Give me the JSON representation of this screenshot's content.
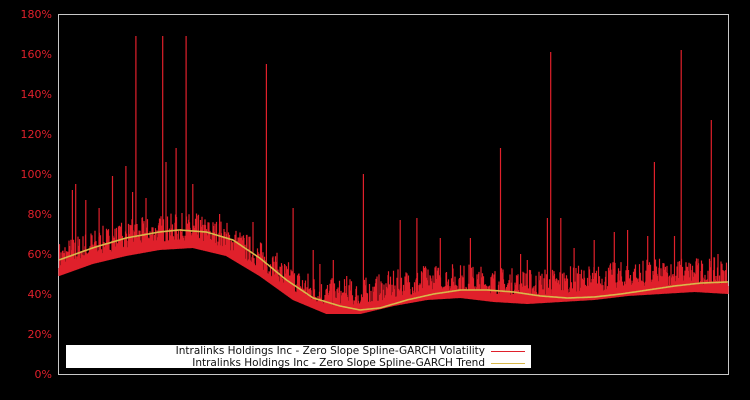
{
  "chart_data": {
    "type": "line",
    "title": "",
    "xlabel": "",
    "ylabel": "",
    "ylim": [
      0,
      180
    ],
    "yticks": [
      "0%",
      "20%",
      "40%",
      "60%",
      "80%",
      "100%",
      "120%",
      "140%",
      "160%",
      "180%"
    ],
    "grid": false,
    "legend_position": "lower-left inside",
    "series": [
      {
        "name": "Intralinks Holdings Inc - Zero Slope Spline-GARCH Volatility",
        "color": "#e0202b",
        "baseline_points": [
          [
            0,
            50
          ],
          [
            0.05,
            56
          ],
          [
            0.1,
            60
          ],
          [
            0.15,
            63
          ],
          [
            0.2,
            64
          ],
          [
            0.25,
            60
          ],
          [
            0.3,
            50
          ],
          [
            0.35,
            38
          ],
          [
            0.4,
            31
          ],
          [
            0.45,
            31
          ],
          [
            0.5,
            35
          ],
          [
            0.55,
            38
          ],
          [
            0.6,
            39
          ],
          [
            0.65,
            37
          ],
          [
            0.7,
            36
          ],
          [
            0.75,
            37
          ],
          [
            0.8,
            38
          ],
          [
            0.85,
            40
          ],
          [
            0.9,
            41
          ],
          [
            0.95,
            42
          ],
          [
            1.0,
            41
          ]
        ],
        "spikes": [
          [
            0.02,
            92
          ],
          [
            0.025,
            95
          ],
          [
            0.04,
            87
          ],
          [
            0.06,
            83
          ],
          [
            0.08,
            99
          ],
          [
            0.1,
            104
          ],
          [
            0.11,
            91
          ],
          [
            0.115,
            169
          ],
          [
            0.13,
            88
          ],
          [
            0.155,
            169
          ],
          [
            0.16,
            106
          ],
          [
            0.175,
            113
          ],
          [
            0.19,
            169
          ],
          [
            0.2,
            95
          ],
          [
            0.24,
            80
          ],
          [
            0.29,
            76
          ],
          [
            0.31,
            155
          ],
          [
            0.35,
            83
          ],
          [
            0.38,
            62
          ],
          [
            0.39,
            55
          ],
          [
            0.41,
            57
          ],
          [
            0.43,
            49
          ],
          [
            0.455,
            100
          ],
          [
            0.51,
            77
          ],
          [
            0.535,
            78
          ],
          [
            0.57,
            68
          ],
          [
            0.615,
            68
          ],
          [
            0.66,
            113
          ],
          [
            0.69,
            60
          ],
          [
            0.7,
            57
          ],
          [
            0.735,
            161
          ],
          [
            0.73,
            78
          ],
          [
            0.75,
            78
          ],
          [
            0.77,
            63
          ],
          [
            0.8,
            67
          ],
          [
            0.83,
            71
          ],
          [
            0.85,
            72
          ],
          [
            0.88,
            69
          ],
          [
            0.89,
            106
          ],
          [
            0.92,
            69
          ],
          [
            0.93,
            162
          ],
          [
            0.975,
            127
          ],
          [
            0.985,
            60
          ]
        ]
      },
      {
        "name": "Intralinks Holdings Inc - Zero Slope Spline-GARCH Trend",
        "color": "#d9b84a",
        "points": [
          [
            0,
            57
          ],
          [
            0.05,
            63
          ],
          [
            0.1,
            68
          ],
          [
            0.15,
            71
          ],
          [
            0.18,
            72
          ],
          [
            0.22,
            71
          ],
          [
            0.26,
            67
          ],
          [
            0.3,
            58
          ],
          [
            0.34,
            47
          ],
          [
            0.38,
            38
          ],
          [
            0.42,
            34
          ],
          [
            0.45,
            32
          ],
          [
            0.48,
            33
          ],
          [
            0.52,
            37
          ],
          [
            0.56,
            40
          ],
          [
            0.6,
            42
          ],
          [
            0.64,
            42
          ],
          [
            0.68,
            41
          ],
          [
            0.72,
            39
          ],
          [
            0.76,
            38
          ],
          [
            0.8,
            38.5
          ],
          [
            0.84,
            40
          ],
          [
            0.88,
            42
          ],
          [
            0.92,
            44
          ],
          [
            0.96,
            45.5
          ],
          [
            1.0,
            46
          ]
        ]
      }
    ]
  },
  "legend": {
    "volatility_label": "Intralinks Holdings Inc - Zero Slope Spline-GARCH Volatility",
    "trend_label": "Intralinks Holdings Inc - Zero Slope Spline-GARCH Trend"
  },
  "axis": {
    "y0": "0%",
    "y20": "20%",
    "y40": "40%",
    "y60": "60%",
    "y80": "80%",
    "y100": "100%",
    "y120": "120%",
    "y140": "140%",
    "y160": "160%",
    "y180": "180%"
  }
}
